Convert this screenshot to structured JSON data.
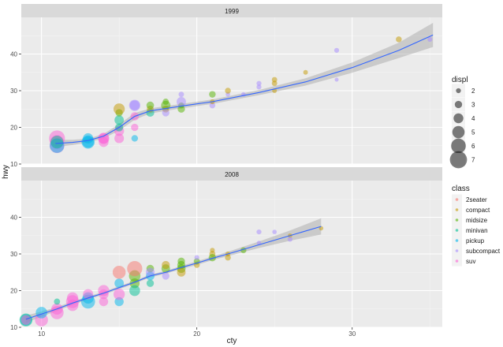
{
  "chart_data": {
    "type": "scatter",
    "xlabel": "cty",
    "ylabel": "hwy",
    "xlim": [
      8.7,
      35.8
    ],
    "ylim": [
      10,
      50
    ],
    "x_ticks": [
      10,
      20,
      30
    ],
    "y_ticks": [
      10,
      20,
      30,
      40
    ],
    "grid": true,
    "smooth": "loess with confidence band",
    "facets": [
      {
        "strip": "1999",
        "points": [
          {
            "x": 11,
            "y": 15,
            "d": 6.0,
            "c": "suv"
          },
          {
            "x": 11,
            "y": 16,
            "d": 5.7,
            "c": "suv"
          },
          {
            "x": 11,
            "y": 17,
            "d": 6.5,
            "c": "suv"
          },
          {
            "x": 11,
            "y": 15,
            "d": 5.9,
            "c": "pickup"
          },
          {
            "x": 11,
            "y": 16,
            "d": 5.2,
            "c": "minivan"
          },
          {
            "x": 13,
            "y": 16,
            "d": 4.7,
            "c": "pickup"
          },
          {
            "x": 13,
            "y": 17,
            "d": 4.2,
            "c": "pickup"
          },
          {
            "x": 13,
            "y": 16,
            "d": 5.4,
            "c": "pickup"
          },
          {
            "x": 14,
            "y": 17,
            "d": 4.6,
            "c": "suv"
          },
          {
            "x": 14,
            "y": 16,
            "d": 4.0,
            "c": "suv"
          },
          {
            "x": 14,
            "y": 17,
            "d": 4.2,
            "c": "suv"
          },
          {
            "x": 15,
            "y": 17,
            "d": 3.9,
            "c": "suv"
          },
          {
            "x": 15,
            "y": 19,
            "d": 4.0,
            "c": "suv"
          },
          {
            "x": 15,
            "y": 20,
            "d": 3.3,
            "c": "minivan"
          },
          {
            "x": 15,
            "y": 22,
            "d": 3.8,
            "c": "minivan"
          },
          {
            "x": 15,
            "y": 24,
            "d": 3.0,
            "c": "midsize"
          },
          {
            "x": 15,
            "y": 25,
            "d": 4.6,
            "c": "compact"
          },
          {
            "x": 16,
            "y": 17,
            "d": 2.7,
            "c": "pickup"
          },
          {
            "x": 16,
            "y": 20,
            "d": 3.0,
            "c": "suv"
          },
          {
            "x": 16,
            "y": 26,
            "d": 4.6,
            "c": "subcompact"
          },
          {
            "x": 16,
            "y": 23,
            "d": 3.4,
            "c": "suv"
          },
          {
            "x": 16,
            "y": 26,
            "d": 4.0,
            "c": "subcompact"
          },
          {
            "x": 17,
            "y": 24,
            "d": 3.3,
            "c": "minivan"
          },
          {
            "x": 17,
            "y": 25,
            "d": 2.8,
            "c": "compact"
          },
          {
            "x": 17,
            "y": 26,
            "d": 3.1,
            "c": "midsize"
          },
          {
            "x": 18,
            "y": 25,
            "d": 2.8,
            "c": "compact"
          },
          {
            "x": 18,
            "y": 26,
            "d": 3.8,
            "c": "midsize"
          },
          {
            "x": 18,
            "y": 24,
            "d": 3.0,
            "c": "subcompact"
          },
          {
            "x": 18,
            "y": 27,
            "d": 2.5,
            "c": "midsize"
          },
          {
            "x": 19,
            "y": 26,
            "d": 2.4,
            "c": "midsize"
          },
          {
            "x": 19,
            "y": 25,
            "d": 3.0,
            "c": "midsize"
          },
          {
            "x": 19,
            "y": 27,
            "d": 3.8,
            "c": "subcompact"
          },
          {
            "x": 19,
            "y": 29,
            "d": 2.2,
            "c": "subcompact"
          },
          {
            "x": 21,
            "y": 26,
            "d": 2.4,
            "c": "subcompact"
          },
          {
            "x": 21,
            "y": 27,
            "d": 2.0,
            "c": "compact"
          },
          {
            "x": 21,
            "y": 29,
            "d": 2.7,
            "c": "midsize"
          },
          {
            "x": 22,
            "y": 29,
            "d": 1.8,
            "c": "subcompact"
          },
          {
            "x": 22,
            "y": 30,
            "d": 2.4,
            "c": "compact"
          },
          {
            "x": 23,
            "y": 29,
            "d": 1.8,
            "c": "subcompact"
          },
          {
            "x": 24,
            "y": 32,
            "d": 2.0,
            "c": "subcompact"
          },
          {
            "x": 24,
            "y": 31,
            "d": 2.0,
            "c": "subcompact"
          },
          {
            "x": 25,
            "y": 32,
            "d": 2.2,
            "c": "compact"
          },
          {
            "x": 25,
            "y": 30,
            "d": 1.9,
            "c": "compact"
          },
          {
            "x": 25,
            "y": 33,
            "d": 2.2,
            "c": "compact"
          },
          {
            "x": 27,
            "y": 35,
            "d": 1.9,
            "c": "compact"
          },
          {
            "x": 29,
            "y": 33,
            "d": 1.6,
            "c": "subcompact"
          },
          {
            "x": 29,
            "y": 41,
            "d": 2.0,
            "c": "subcompact"
          },
          {
            "x": 33,
            "y": 44,
            "d": 2.4,
            "c": "compact"
          },
          {
            "x": 35,
            "y": 44,
            "d": 2.0,
            "c": "subcompact"
          }
        ],
        "smooth_line": [
          [
            10.9,
            15.6
          ],
          [
            12,
            15.9
          ],
          [
            13,
            16.4
          ],
          [
            14,
            17.6
          ],
          [
            15,
            20
          ],
          [
            16,
            23
          ],
          [
            17,
            24.5
          ],
          [
            19,
            25.8
          ],
          [
            21,
            27
          ],
          [
            24,
            29.5
          ],
          [
            27,
            32.4
          ],
          [
            30,
            36.3
          ],
          [
            33,
            41
          ],
          [
            35.2,
            45.2
          ]
        ],
        "band_halfwidth": [
          1.0,
          0.7,
          0.5,
          0.6,
          0.9,
          0.9,
          0.7,
          0.6,
          0.6,
          0.7,
          1.0,
          1.4,
          2.1,
          3.3
        ]
      },
      {
        "strip": "2008",
        "points": [
          {
            "x": 9,
            "y": 12,
            "d": 4.7,
            "c": "pickup"
          },
          {
            "x": 9,
            "y": 12,
            "d": 5.3,
            "c": "minivan"
          },
          {
            "x": 9,
            "y": 12,
            "d": 4.0,
            "c": "suv"
          },
          {
            "x": 10,
            "y": 12,
            "d": 5.3,
            "c": "suv"
          },
          {
            "x": 10,
            "y": 14,
            "d": 4.7,
            "c": "pickup"
          },
          {
            "x": 11,
            "y": 15,
            "d": 4.7,
            "c": "suv"
          },
          {
            "x": 11,
            "y": 17,
            "d": 2.5,
            "c": "minivan"
          },
          {
            "x": 11,
            "y": 14,
            "d": 5.4,
            "c": "suv"
          },
          {
            "x": 12,
            "y": 16,
            "d": 4.7,
            "c": "suv"
          },
          {
            "x": 12,
            "y": 17,
            "d": 5.3,
            "c": "suv"
          },
          {
            "x": 12,
            "y": 18,
            "d": 4.6,
            "c": "suv"
          },
          {
            "x": 13,
            "y": 17,
            "d": 5.7,
            "c": "pickup"
          },
          {
            "x": 13,
            "y": 18,
            "d": 4.6,
            "c": "pickup"
          },
          {
            "x": 13,
            "y": 19,
            "d": 4.2,
            "c": "suv"
          },
          {
            "x": 14,
            "y": 17,
            "d": 3.7,
            "c": "suv"
          },
          {
            "x": 14,
            "y": 19,
            "d": 4.0,
            "c": "suv"
          },
          {
            "x": 14,
            "y": 20,
            "d": 4.6,
            "c": "suv"
          },
          {
            "x": 15,
            "y": 17,
            "d": 3.7,
            "c": "pickup"
          },
          {
            "x": 15,
            "y": 19,
            "d": 4.6,
            "c": "suv"
          },
          {
            "x": 15,
            "y": 22,
            "d": 3.8,
            "c": "pickup"
          },
          {
            "x": 15,
            "y": 25,
            "d": 5.3,
            "c": "2seater"
          },
          {
            "x": 16,
            "y": 22,
            "d": 4.0,
            "c": "midsize"
          },
          {
            "x": 16,
            "y": 24,
            "d": 4.7,
            "c": "midsize"
          },
          {
            "x": 16,
            "y": 26,
            "d": 6.2,
            "c": "2seater"
          },
          {
            "x": 16,
            "y": 20,
            "d": 4.4,
            "c": "minivan"
          },
          {
            "x": 17,
            "y": 22,
            "d": 3.0,
            "c": "minivan"
          },
          {
            "x": 17,
            "y": 24,
            "d": 3.5,
            "c": "pickup"
          },
          {
            "x": 17,
            "y": 26,
            "d": 3.1,
            "c": "midsize"
          },
          {
            "x": 17,
            "y": 25,
            "d": 3.6,
            "c": "subcompact"
          },
          {
            "x": 18,
            "y": 26,
            "d": 3.5,
            "c": "midsize"
          },
          {
            "x": 18,
            "y": 27,
            "d": 3.3,
            "c": "compact"
          },
          {
            "x": 18,
            "y": 24,
            "d": 3.0,
            "c": "subcompact"
          },
          {
            "x": 19,
            "y": 26,
            "d": 3.5,
            "c": "midsize"
          },
          {
            "x": 19,
            "y": 27,
            "d": 3.3,
            "c": "midsize"
          },
          {
            "x": 19,
            "y": 28,
            "d": 3.0,
            "c": "midsize"
          },
          {
            "x": 19,
            "y": 25,
            "d": 3.5,
            "c": "compact"
          },
          {
            "x": 20,
            "y": 27,
            "d": 2.4,
            "c": "compact"
          },
          {
            "x": 20,
            "y": 28,
            "d": 2.5,
            "c": "midsize"
          },
          {
            "x": 20,
            "y": 29,
            "d": 2.0,
            "c": "subcompact"
          },
          {
            "x": 21,
            "y": 30,
            "d": 2.5,
            "c": "compact"
          },
          {
            "x": 21,
            "y": 31,
            "d": 2.0,
            "c": "compact"
          },
          {
            "x": 21,
            "y": 29,
            "d": 3.0,
            "c": "midsize"
          },
          {
            "x": 22,
            "y": 29,
            "d": 2.4,
            "c": "compact"
          },
          {
            "x": 22,
            "y": 30,
            "d": 2.0,
            "c": "compact"
          },
          {
            "x": 23,
            "y": 31,
            "d": 2.4,
            "c": "midsize"
          },
          {
            "x": 24,
            "y": 33,
            "d": 1.8,
            "c": "subcompact"
          },
          {
            "x": 24,
            "y": 36,
            "d": 2.0,
            "c": "subcompact"
          },
          {
            "x": 25,
            "y": 36,
            "d": 1.8,
            "c": "subcompact"
          },
          {
            "x": 26,
            "y": 35,
            "d": 1.8,
            "c": "compact"
          },
          {
            "x": 26,
            "y": 34,
            "d": 2.0,
            "c": "subcompact"
          },
          {
            "x": 28,
            "y": 37,
            "d": 1.8,
            "c": "compact"
          }
        ],
        "smooth_line": [
          [
            9,
            12.2
          ],
          [
            10,
            13.6
          ],
          [
            11,
            15
          ],
          [
            12,
            16.6
          ],
          [
            13,
            18
          ],
          [
            14,
            19.3
          ],
          [
            15,
            20.8
          ],
          [
            16,
            22.3
          ],
          [
            17,
            24
          ],
          [
            18,
            25
          ],
          [
            19,
            26.3
          ],
          [
            20,
            27.5
          ],
          [
            21,
            28.8
          ],
          [
            22,
            30
          ],
          [
            24,
            32.5
          ],
          [
            26,
            35
          ],
          [
            28,
            37.5
          ]
        ],
        "band_halfwidth": [
          1.0,
          0.7,
          0.5,
          0.5,
          0.4,
          0.4,
          0.4,
          0.4,
          0.4,
          0.4,
          0.4,
          0.5,
          0.5,
          0.6,
          0.9,
          1.4,
          2.2
        ]
      }
    ],
    "legends": {
      "size": {
        "title": "displ",
        "entries": [
          {
            "value": 2,
            "label": "2"
          },
          {
            "value": 3,
            "label": "3"
          },
          {
            "value": 4,
            "label": "4"
          },
          {
            "value": 5,
            "label": "5"
          },
          {
            "value": 6,
            "label": "6"
          },
          {
            "value": 7,
            "label": "7"
          }
        ]
      },
      "color": {
        "title": "class",
        "entries": [
          {
            "label": "2seater",
            "color": "#F8766D"
          },
          {
            "label": "compact",
            "color": "#C49A00"
          },
          {
            "label": "midsize",
            "color": "#53B400"
          },
          {
            "label": "minivan",
            "color": "#00C094"
          },
          {
            "label": "pickup",
            "color": "#00B6EB"
          },
          {
            "label": "subcompact",
            "color": "#A58AFF"
          },
          {
            "label": "suv",
            "color": "#FB61D7"
          }
        ]
      }
    }
  }
}
